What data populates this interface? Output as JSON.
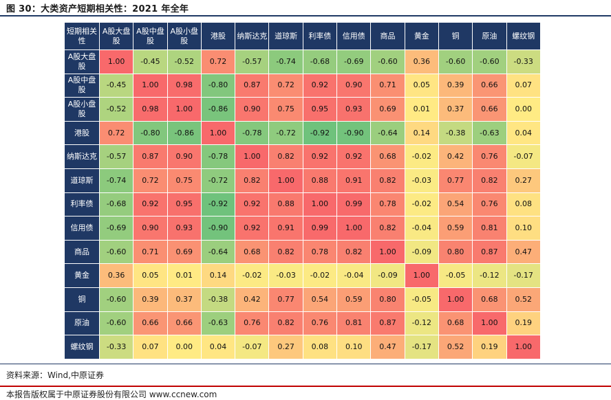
{
  "figure": {
    "title": "图 30：大类资产短期相关性：2021 年全年"
  },
  "chart_data": {
    "type": "heatmap",
    "title": "大类资产短期相关性：2021 年全年",
    "corner_label": "短期相关性",
    "labels": [
      "A股大盘股",
      "A股中盘股",
      "A股小盘股",
      "港股",
      "纳斯达克",
      "道琼斯",
      "利率债",
      "信用债",
      "商品",
      "黄金",
      "铜",
      "原油",
      "螺纹钢"
    ],
    "values": [
      [
        1.0,
        -0.45,
        -0.52,
        0.72,
        -0.57,
        -0.74,
        -0.68,
        -0.69,
        -0.6,
        0.36,
        -0.6,
        -0.6,
        -0.33
      ],
      [
        -0.45,
        1.0,
        0.98,
        -0.8,
        0.87,
        0.72,
        0.92,
        0.9,
        0.71,
        0.05,
        0.39,
        0.66,
        0.07
      ],
      [
        -0.52,
        0.98,
        1.0,
        -0.86,
        0.9,
        0.75,
        0.95,
        0.93,
        0.69,
        0.01,
        0.37,
        0.66,
        0.0
      ],
      [
        0.72,
        -0.8,
        -0.86,
        1.0,
        -0.78,
        -0.72,
        -0.92,
        -0.9,
        -0.64,
        0.14,
        -0.38,
        -0.63,
        0.04
      ],
      [
        -0.57,
        0.87,
        0.9,
        -0.78,
        1.0,
        0.82,
        0.92,
        0.92,
        0.68,
        -0.02,
        0.42,
        0.76,
        -0.07
      ],
      [
        -0.74,
        0.72,
        0.75,
        -0.72,
        0.82,
        1.0,
        0.88,
        0.91,
        0.82,
        -0.03,
        0.77,
        0.82,
        0.27
      ],
      [
        -0.68,
        0.92,
        0.95,
        -0.92,
        0.92,
        0.88,
        1.0,
        0.99,
        0.78,
        -0.02,
        0.54,
        0.76,
        0.08
      ],
      [
        -0.69,
        0.9,
        0.93,
        -0.9,
        0.92,
        0.91,
        0.99,
        1.0,
        0.82,
        -0.04,
        0.59,
        0.81,
        0.1
      ],
      [
        -0.6,
        0.71,
        0.69,
        -0.64,
        0.68,
        0.82,
        0.78,
        0.82,
        1.0,
        -0.09,
        0.8,
        0.87,
        0.47
      ],
      [
        0.36,
        0.05,
        0.01,
        0.14,
        -0.02,
        -0.03,
        -0.02,
        -0.04,
        -0.09,
        1.0,
        -0.05,
        -0.12,
        -0.17
      ],
      [
        -0.6,
        0.39,
        0.37,
        -0.38,
        0.42,
        0.77,
        0.54,
        0.59,
        0.8,
        -0.05,
        1.0,
        0.68,
        0.52
      ],
      [
        -0.6,
        0.66,
        0.66,
        -0.63,
        0.76,
        0.82,
        0.76,
        0.81,
        0.87,
        -0.12,
        0.68,
        1.0,
        0.19
      ],
      [
        -0.33,
        0.07,
        0.0,
        0.04,
        -0.07,
        0.27,
        0.08,
        0.1,
        0.47,
        -0.17,
        0.52,
        0.19,
        1.0
      ]
    ],
    "color_scale": {
      "min": -1,
      "mid": 0,
      "max": 1,
      "min_color": "#63be7b",
      "mid_color": "#ffeb84",
      "max_color": "#f8696b"
    },
    "header_color": "#1f3864",
    "header_text_color": "#ffffff"
  },
  "source": "资料来源：Wind,中原证券",
  "footer": "本报告版权属于中原证券股份有限公司    www.ccnew.com"
}
